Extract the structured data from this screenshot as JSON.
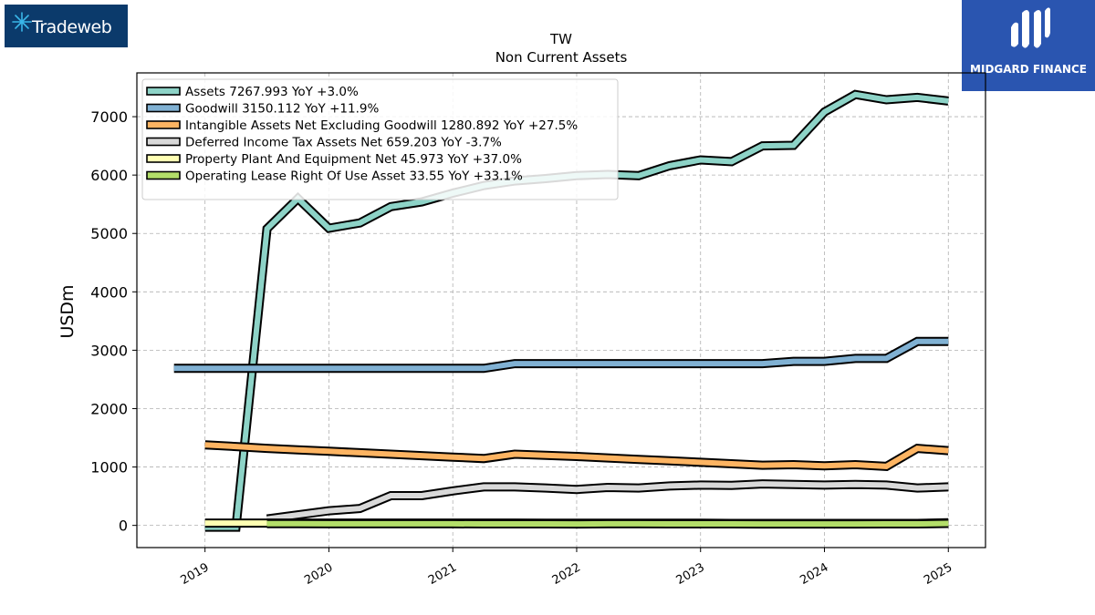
{
  "logos": {
    "left_text": "Tradeweb",
    "right_text": "MIDGARD FINANCE"
  },
  "chart_data": {
    "type": "line",
    "title": "TW",
    "subtitle": "Non Current  Assets",
    "ylabel": "USDm",
    "xlabel": "",
    "ylim": [
      -380,
      7750
    ],
    "xlim": [
      2018.45,
      2025.3
    ],
    "yticks": [
      0,
      1000,
      2000,
      3000,
      4000,
      5000,
      6000,
      7000
    ],
    "xticks": [
      "2019",
      "2020",
      "2021",
      "2022",
      "2023",
      "2024",
      "2025"
    ],
    "grid": true,
    "legend_position": "top-left",
    "series": [
      {
        "name": "Assets  7267.993 YoY +3.0%",
        "color": "#8dd3c7",
        "x": [
          2019.0,
          2019.25,
          2019.5,
          2019.75,
          2020.0,
          2020.25,
          2020.5,
          2020.75,
          2021.0,
          2021.25,
          2021.5,
          2021.75,
          2022.0,
          2022.25,
          2022.5,
          2022.75,
          2023.0,
          2023.25,
          2023.5,
          2023.75,
          2024.0,
          2024.25,
          2024.5,
          2024.75,
          2025.0
        ],
        "y": [
          -30,
          -30,
          5080,
          5600,
          5090,
          5180,
          5460,
          5540,
          5690,
          5820,
          5900,
          5940,
          5990,
          6010,
          5990,
          6160,
          6260,
          6230,
          6500,
          6510,
          7080,
          7380,
          7290,
          7330,
          7268
        ]
      },
      {
        "name": "Goodwill  3150.112 YoY +11.9%",
        "color": "#80b1d3",
        "x": [
          2018.75,
          2019.0,
          2019.25,
          2019.5,
          2019.75,
          2020.0,
          2020.25,
          2020.5,
          2020.75,
          2021.0,
          2021.25,
          2021.5,
          2021.75,
          2022.0,
          2022.25,
          2022.5,
          2022.75,
          2023.0,
          2023.25,
          2023.5,
          2023.75,
          2024.0,
          2024.25,
          2024.5,
          2024.75,
          2025.0
        ],
        "y": [
          2690,
          2690,
          2690,
          2690,
          2690,
          2690,
          2690,
          2690,
          2690,
          2690,
          2690,
          2770,
          2770,
          2770,
          2770,
          2770,
          2770,
          2770,
          2770,
          2770,
          2810,
          2810,
          2860,
          2860,
          3150,
          3150
        ]
      },
      {
        "name": "Intangible Assets Net Excluding Goodwill  1280.892 YoY +27.5%",
        "color": "#fdb462",
        "x": [
          2019.0,
          2019.25,
          2019.5,
          2019.75,
          2020.0,
          2020.25,
          2020.5,
          2020.75,
          2021.0,
          2021.25,
          2021.5,
          2021.75,
          2022.0,
          2022.25,
          2022.5,
          2022.75,
          2023.0,
          2023.25,
          2023.5,
          2023.75,
          2024.0,
          2024.25,
          2024.5,
          2024.75,
          2025.0
        ],
        "y": [
          1380,
          1350,
          1320,
          1295,
          1270,
          1245,
          1220,
          1195,
          1170,
          1145,
          1220,
          1200,
          1180,
          1155,
          1130,
          1105,
          1080,
          1055,
          1030,
          1040,
          1020,
          1040,
          1010,
          1320,
          1281
        ]
      },
      {
        "name": "Deferred Income Tax Assets Net  659.203 YoY -3.7%",
        "color": "#d9d9d9",
        "x": [
          2019.5,
          2019.75,
          2020.0,
          2020.25,
          2020.5,
          2020.75,
          2021.0,
          2021.25,
          2021.5,
          2021.75,
          2022.0,
          2022.25,
          2022.5,
          2022.75,
          2023.0,
          2023.25,
          2023.5,
          2023.75,
          2024.0,
          2024.25,
          2024.5,
          2024.75,
          2025.0
        ],
        "y": [
          110,
          180,
          250,
          290,
          510,
          510,
          590,
          660,
          660,
          640,
          615,
          650,
          640,
          675,
          690,
          685,
          710,
          700,
          690,
          700,
          690,
          640,
          659
        ]
      },
      {
        "name": "Property Plant And Equipment Net  45.973 YoY +37.0%",
        "color": "#ffffb3",
        "x": [
          2019.0,
          2019.25,
          2019.5,
          2019.75,
          2020.0,
          2020.25,
          2020.5,
          2020.75,
          2021.0,
          2021.25,
          2021.5,
          2021.75,
          2022.0,
          2022.25,
          2022.5,
          2022.75,
          2023.0,
          2023.25,
          2023.5,
          2023.75,
          2024.0,
          2024.25,
          2024.5,
          2024.75,
          2025.0
        ],
        "y": [
          40,
          40,
          40,
          40,
          40,
          40,
          40,
          40,
          40,
          40,
          40,
          38,
          36,
          38,
          38,
          36,
          36,
          34,
          34,
          33,
          34,
          33,
          34,
          34,
          46
        ]
      },
      {
        "name": "Operating Lease Right Of Use Asset  33.55 YoY +33.1%",
        "color": "#b3de69",
        "x": [
          2019.5,
          2019.75,
          2020.0,
          2020.25,
          2020.5,
          2020.75,
          2021.0,
          2021.25,
          2021.5,
          2021.75,
          2022.0,
          2022.25,
          2022.5,
          2022.75,
          2023.0,
          2023.25,
          2023.5,
          2023.75,
          2024.0,
          2024.25,
          2024.5,
          2024.75,
          2025.0
        ],
        "y": [
          30,
          30,
          28,
          28,
          27,
          27,
          27,
          26,
          26,
          25,
          24,
          27,
          27,
          26,
          25,
          25,
          24,
          24,
          24,
          24,
          25,
          25,
          34
        ]
      }
    ]
  }
}
